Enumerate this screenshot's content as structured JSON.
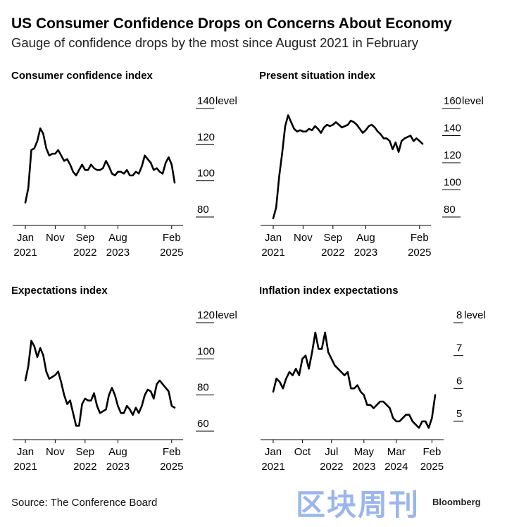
{
  "header": {
    "title": "US Consumer Confidence Drops on Concerns About Economy",
    "subtitle": "Gauge of confidence drops by the most since August 2021 in February"
  },
  "footer": {
    "source": "Source: The Conference Board",
    "brand": "Bloomberg",
    "watermark": "区块周刊"
  },
  "chart_data": [
    {
      "type": "line",
      "title": "Consumer confidence index",
      "unit_label": "level",
      "ylim": [
        80,
        140
      ],
      "yticks": [
        80,
        100,
        120,
        140
      ],
      "xticks": [
        {
          "t": 0,
          "line1": "Jan",
          "line2": "2021"
        },
        {
          "t": 10,
          "line1": "Nov",
          "line2": ""
        },
        {
          "t": 20,
          "line1": "Sep",
          "line2": "2022"
        },
        {
          "t": 31,
          "line1": "Aug",
          "line2": "2023"
        },
        {
          "t": 49,
          "line1": "Feb",
          "line2": "2025"
        }
      ],
      "values": [
        88,
        96,
        117,
        118,
        122,
        129,
        126,
        118,
        114,
        115,
        115,
        117,
        114,
        111,
        112,
        109,
        105,
        103,
        106,
        109,
        106,
        106,
        109,
        107,
        106,
        106,
        107,
        111,
        108,
        104,
        103,
        105,
        105,
        104,
        106,
        103,
        103,
        105,
        104,
        108,
        114,
        112,
        110,
        106,
        107,
        105,
        104,
        110,
        113,
        109,
        99
      ]
    },
    {
      "type": "line",
      "title": "Present situation index",
      "unit_label": "level",
      "ylim": [
        80,
        160
      ],
      "yticks": [
        80,
        100,
        120,
        140,
        160
      ],
      "xticks": [
        {
          "t": 0,
          "line1": "Jan",
          "line2": "2021"
        },
        {
          "t": 10,
          "line1": "Nov",
          "line2": ""
        },
        {
          "t": 20,
          "line1": "Sep",
          "line2": "2022"
        },
        {
          "t": 31,
          "line1": "Aug",
          "line2": "2023"
        },
        {
          "t": 49,
          "line1": "Feb",
          "line2": "2025"
        }
      ],
      "values": [
        79,
        87,
        110,
        127,
        147,
        155,
        150,
        145,
        143,
        144,
        143,
        143,
        145,
        144,
        147,
        145,
        142,
        146,
        148,
        147,
        148,
        150,
        148,
        146,
        147,
        148,
        151,
        150,
        148,
        145,
        142,
        144,
        147,
        148,
        146,
        143,
        141,
        138,
        138,
        136,
        130,
        135,
        128,
        136,
        138,
        139,
        140,
        136,
        138,
        136,
        134
      ]
    },
    {
      "type": "line",
      "title": "Expectations index",
      "unit_label": "level",
      "ylim": [
        60,
        120
      ],
      "yticks": [
        60,
        80,
        100,
        120
      ],
      "xticks": [
        {
          "t": 0,
          "line1": "Jan",
          "line2": "2021"
        },
        {
          "t": 10,
          "line1": "Nov",
          "line2": ""
        },
        {
          "t": 20,
          "line1": "Sep",
          "line2": "2022"
        },
        {
          "t": 31,
          "line1": "Aug",
          "line2": "2023"
        },
        {
          "t": 49,
          "line1": "Feb",
          "line2": "2025"
        }
      ],
      "values": [
        88,
        96,
        110,
        107,
        101,
        106,
        102,
        93,
        89,
        90,
        91,
        93,
        87,
        80,
        75,
        77,
        70,
        63,
        63,
        75,
        78,
        77,
        77,
        81,
        74,
        70,
        71,
        72,
        80,
        84,
        80,
        74,
        70,
        70,
        74,
        72,
        69,
        73,
        70,
        74,
        80,
        83,
        82,
        78,
        86,
        88,
        86,
        84,
        82,
        74,
        73
      ]
    },
    {
      "type": "line",
      "title": "Inflation index expectations",
      "unit_label": "level",
      "ylim": [
        4.7,
        8
      ],
      "yticks": [
        5,
        6,
        7,
        8
      ],
      "xticks": [
        {
          "t": 0,
          "line1": "Jan",
          "line2": "2021"
        },
        {
          "t": 9,
          "line1": "Oct",
          "line2": ""
        },
        {
          "t": 18,
          "line1": "Jul",
          "line2": "2022"
        },
        {
          "t": 28,
          "line1": "May",
          "line2": "2023"
        },
        {
          "t": 38,
          "line1": "Mar",
          "line2": "2024"
        },
        {
          "t": 49,
          "line1": "Feb",
          "line2": "2025"
        }
      ],
      "values": [
        5.9,
        6.3,
        6.2,
        6.0,
        6.3,
        6.5,
        6.4,
        6.6,
        6.4,
        6.9,
        7.0,
        6.6,
        7.1,
        7.7,
        7.2,
        7.2,
        7.7,
        7.1,
        6.9,
        6.7,
        6.6,
        6.5,
        6.4,
        6.5,
        6.0,
        6.0,
        6.1,
        5.9,
        5.8,
        5.5,
        5.5,
        5.4,
        5.5,
        5.6,
        5.6,
        5.5,
        5.4,
        5.1,
        5.0,
        5.0,
        5.1,
        5.2,
        5.2,
        5.0,
        4.9,
        4.8,
        5.0,
        5.0,
        4.8,
        5.1,
        5.8
      ]
    }
  ]
}
